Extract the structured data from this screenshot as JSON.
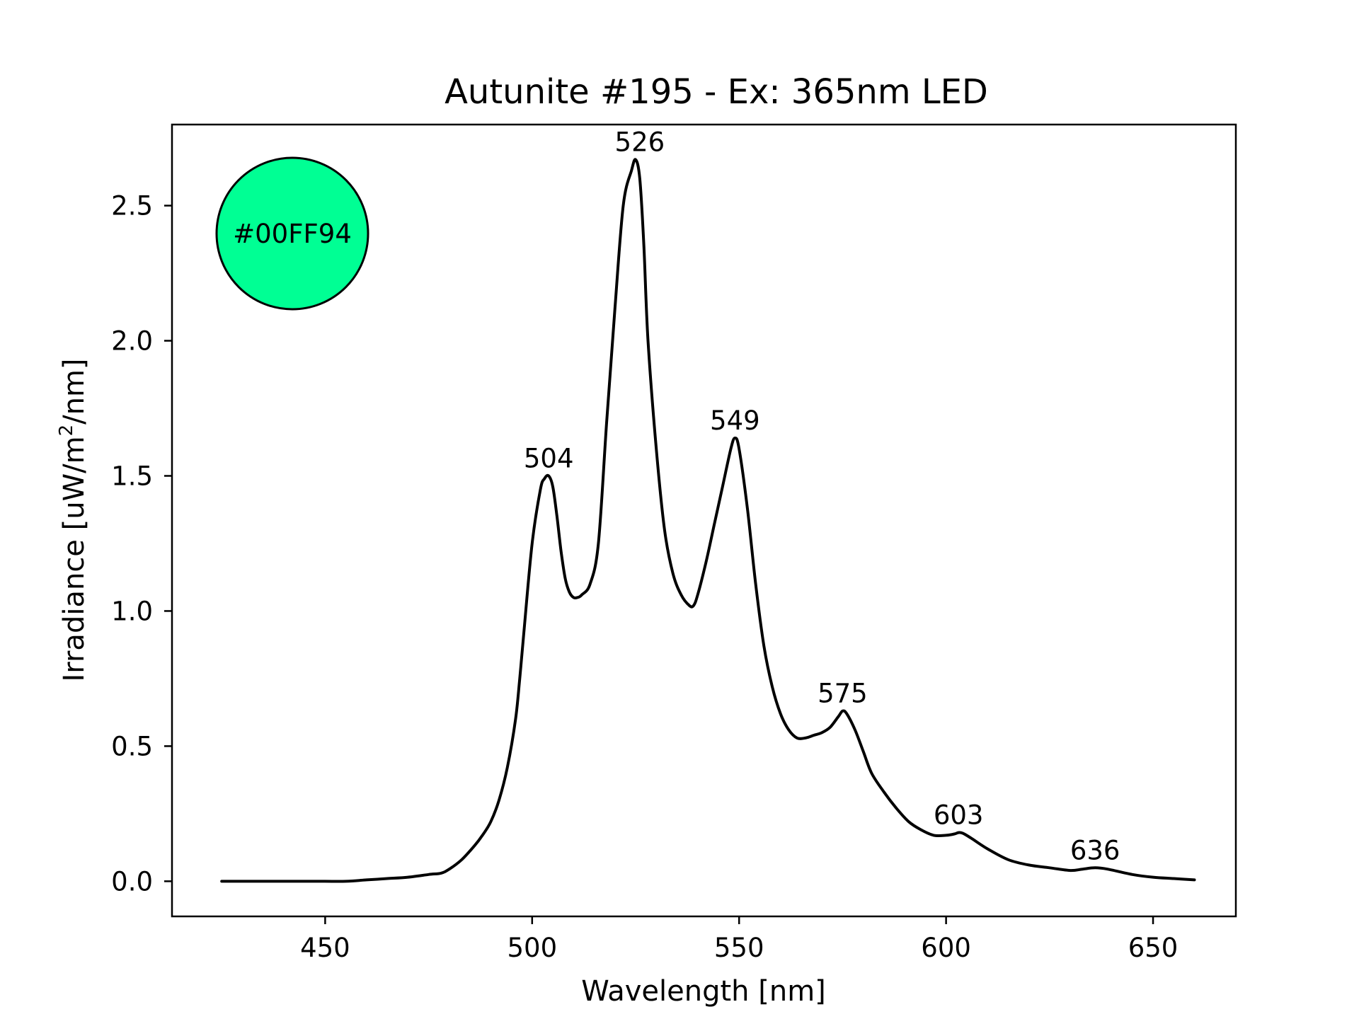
{
  "chart_data": {
    "type": "line",
    "title": "Autunite #195 - Ex: 365nm LED",
    "xlabel": "Wavelength [nm]",
    "ylabel_main": "Irradiance [uW/m",
    "ylabel_sup": "2",
    "ylabel_tail": "/nm]",
    "xlim": [
      413,
      670
    ],
    "ylim": [
      -0.13,
      2.8
    ],
    "xticks": [
      450,
      500,
      550,
      600,
      650
    ],
    "xtick_labels": [
      "450",
      "500",
      "550",
      "600",
      "650"
    ],
    "yticks": [
      0.0,
      0.5,
      1.0,
      1.5,
      2.0,
      2.5
    ],
    "ytick_labels": [
      "0.0",
      "0.5",
      "1.0",
      "1.5",
      "2.0",
      "2.5"
    ],
    "grid": false,
    "line_color": "#000000",
    "color_swatch": {
      "label": "#00FF94",
      "color": "#00FF94"
    },
    "peaks": [
      {
        "x": 504,
        "y": 1.5,
        "label": "504"
      },
      {
        "x": 526,
        "y": 2.67,
        "label": "526"
      },
      {
        "x": 549,
        "y": 1.64,
        "label": "549"
      },
      {
        "x": 575,
        "y": 0.63,
        "label": "575"
      },
      {
        "x": 603,
        "y": 0.18,
        "label": "603"
      },
      {
        "x": 636,
        "y": 0.05,
        "label": "636"
      }
    ],
    "series": [
      {
        "x": [
          425,
          430,
          435,
          440,
          445,
          450,
          455,
          460,
          465,
          470,
          475,
          478,
          480,
          483,
          486,
          488,
          490,
          492,
          494,
          496,
          497,
          498,
          500,
          502,
          503,
          504,
          505,
          506,
          507,
          508,
          509,
          510,
          511,
          512,
          514,
          516,
          518,
          520,
          522,
          524,
          525,
          526,
          527,
          528,
          530,
          532,
          534,
          536,
          538,
          539,
          540,
          542,
          544,
          546,
          548,
          549,
          550,
          552,
          554,
          556,
          558,
          560,
          562,
          564,
          566,
          568,
          570,
          572,
          574,
          575,
          576,
          578,
          580,
          582,
          585,
          588,
          591,
          594,
          597,
          600,
          602,
          603,
          604,
          606,
          610,
          615,
          620,
          625,
          630,
          633,
          636,
          639,
          645,
          650,
          655,
          660
        ],
        "y": [
          0.0,
          0.0,
          0.0,
          0.0,
          0.0,
          0.0,
          0.0,
          0.005,
          0.01,
          0.015,
          0.025,
          0.03,
          0.045,
          0.08,
          0.13,
          0.17,
          0.22,
          0.3,
          0.42,
          0.6,
          0.75,
          0.92,
          1.25,
          1.45,
          1.49,
          1.5,
          1.46,
          1.35,
          1.22,
          1.12,
          1.07,
          1.05,
          1.05,
          1.06,
          1.1,
          1.25,
          1.7,
          2.12,
          2.5,
          2.63,
          2.67,
          2.6,
          2.35,
          2.0,
          1.6,
          1.3,
          1.14,
          1.06,
          1.02,
          1.02,
          1.06,
          1.18,
          1.32,
          1.46,
          1.6,
          1.64,
          1.6,
          1.38,
          1.1,
          0.87,
          0.72,
          0.62,
          0.56,
          0.53,
          0.53,
          0.54,
          0.55,
          0.57,
          0.61,
          0.63,
          0.62,
          0.56,
          0.48,
          0.4,
          0.33,
          0.27,
          0.22,
          0.19,
          0.17,
          0.17,
          0.175,
          0.18,
          0.178,
          0.16,
          0.12,
          0.08,
          0.06,
          0.05,
          0.04,
          0.045,
          0.05,
          0.045,
          0.025,
          0.015,
          0.01,
          0.005
        ]
      }
    ]
  }
}
